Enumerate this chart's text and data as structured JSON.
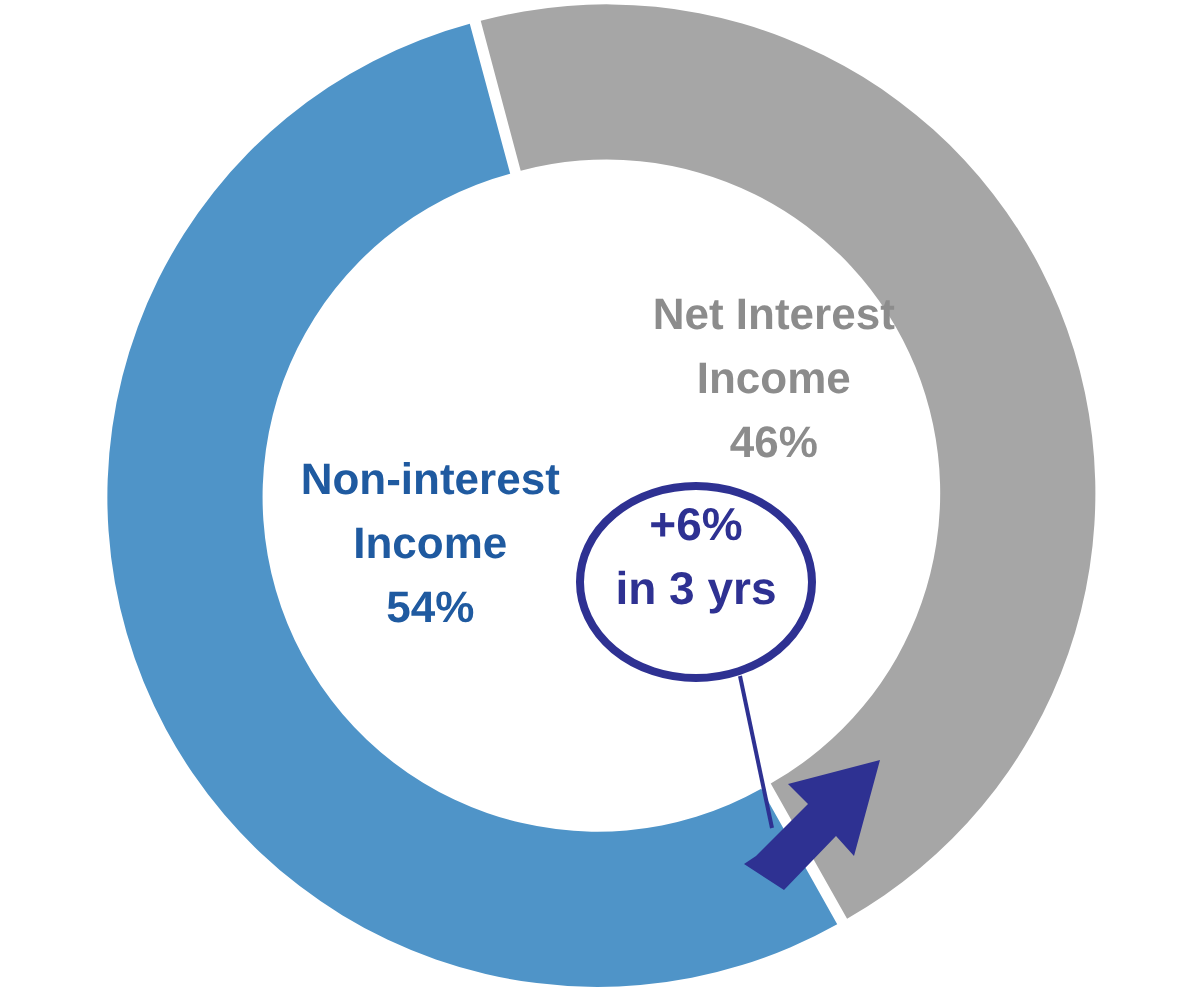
{
  "chart_data": {
    "type": "donut",
    "categories": [
      "Net Interest Income",
      "Non-interest Income"
    ],
    "values": [
      46,
      54
    ],
    "colors": [
      "#a6a6a6",
      "#4f94c8"
    ],
    "value_labels": [
      "46%",
      "54%"
    ],
    "legend": false,
    "annotations": [
      "+6%\nin 3 yrs"
    ]
  }
}
